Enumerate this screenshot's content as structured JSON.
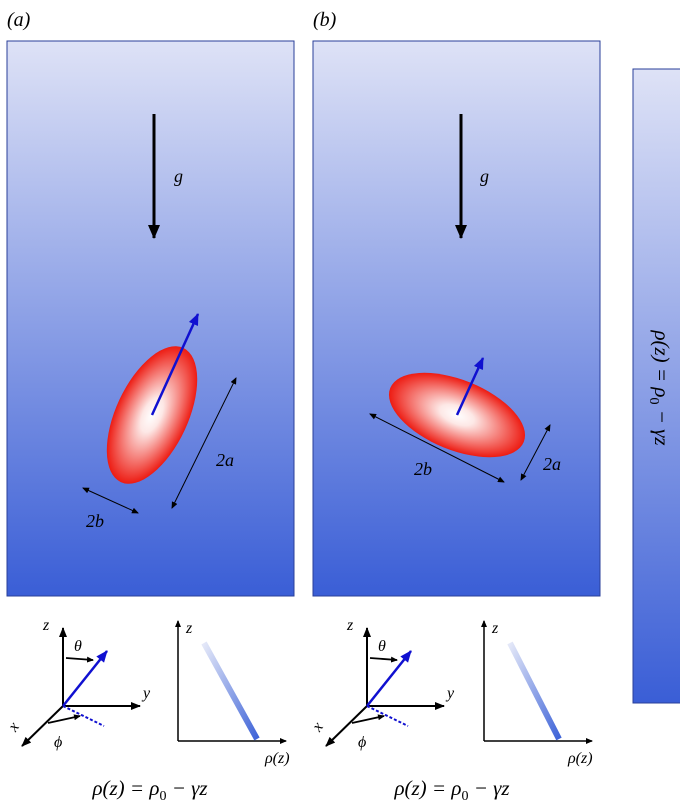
{
  "panels": [
    {
      "label": "(a)",
      "gravity_label": "g",
      "major_axis_label": "2a",
      "minor_axis_label": "2b",
      "axes": {
        "z": "z",
        "x": "x",
        "y": "y",
        "theta": "θ",
        "phi": "ϕ"
      },
      "profile": {
        "z_label": "z",
        "rho_label": "ρ(z)"
      },
      "equation": "ρ(z) = ρ0 − γz"
    },
    {
      "label": "(b)",
      "gravity_label": "g",
      "major_axis_label": "2b",
      "minor_axis_label": "2a",
      "axes": {
        "z": "z",
        "x": "x",
        "y": "y",
        "theta": "θ",
        "phi": "ϕ"
      },
      "profile": {
        "z_label": "z",
        "rho_label": "ρ(z)"
      },
      "equation": "ρ(z) = ρ0 − γz"
    }
  ],
  "colorbar_label": "ρ(z) = ρ0 − γz",
  "colors": {
    "fluid_top": "#dde1f6",
    "fluid_bottom": "#3a5fd6",
    "particle_edge": "#ee1c14",
    "particle_center": "#ffffff",
    "orientation_arrow": "#1010d0"
  }
}
